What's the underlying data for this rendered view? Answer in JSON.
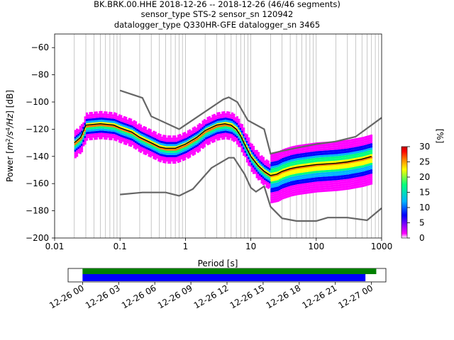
{
  "chart_data": [
    {
      "type": "heatmap",
      "title_lines": [
        "BK.BRK.00.HHE   2018-12-26 -- 2018-12-26  (46/46 segments)",
        "sensor_type STS-2 sensor_sn 120942",
        "datalogger_type Q330HR-GFE datalogger_sn 3465"
      ],
      "xlabel": "Period [s]",
      "ylabel_parts": [
        "Power [",
        "m",
        "2",
        "/",
        "s",
        "4",
        "/Hz",
        "] [dB]"
      ],
      "xscale": "log",
      "xlim": [
        0.01,
        1000
      ],
      "ylim": [
        -200,
        -50
      ],
      "xticks": [
        {
          "v": 0.01,
          "label": "0.01"
        },
        {
          "v": 0.1,
          "label": "0.1"
        },
        {
          "v": 1,
          "label": "1"
        },
        {
          "v": 10,
          "label": "10"
        },
        {
          "v": 100,
          "label": "100"
        },
        {
          "v": 1000,
          "label": "1000"
        }
      ],
      "yticks": [
        {
          "v": -60,
          "label": "−60"
        },
        {
          "v": -80,
          "label": "−80"
        },
        {
          "v": -100,
          "label": "−100"
        },
        {
          "v": -120,
          "label": "−120"
        },
        {
          "v": -140,
          "label": "−140"
        },
        {
          "v": -160,
          "label": "−160"
        },
        {
          "v": -180,
          "label": "−180"
        },
        {
          "v": -200,
          "label": "−200"
        }
      ],
      "grid": "vertical at log minor decades",
      "colorbar": {
        "label": "[%]",
        "range": [
          0,
          30
        ],
        "ticks": [
          {
            "v": 0,
            "label": "0"
          },
          {
            "v": 5,
            "label": "5"
          },
          {
            "v": 10,
            "label": "10"
          },
          {
            "v": 15,
            "label": "15"
          },
          {
            "v": 20,
            "label": "20"
          },
          {
            "v": 25,
            "label": "25"
          },
          {
            "v": 30,
            "label": "30"
          }
        ],
        "colors": [
          "#ffffff",
          "#ff00ff",
          "#0000ff",
          "#00b4ff",
          "#00ff80",
          "#ffff00",
          "#ff8000",
          "#ff0000",
          "#c00000"
        ]
      },
      "series": [
        {
          "x": [
            0.1,
            0.22,
            0.3,
            0.8,
            3.8,
            4.6,
            6.2,
            9.0,
            16,
            20,
            30,
            60,
            100,
            200,
            400,
            1000
          ],
          "values": [
            -91.5,
            -97,
            -110.5,
            -120,
            -98,
            -96.5,
            -100,
            -113.5,
            -120,
            -138,
            -136,
            -133,
            -131,
            -129,
            -125.5,
            -111.5
          ]
        },
        {
          "x": [
            0.1,
            0.22,
            0.5,
            0.8,
            1.3,
            2.5,
            4.6,
            5.5,
            8.0,
            10,
            12,
            16,
            20,
            30,
            50,
            100,
            150,
            300,
            600,
            1000
          ],
          "values": [
            -168,
            -166.5,
            -166.5,
            -169,
            -164,
            -148.5,
            -141,
            -141,
            -153,
            -163,
            -166,
            -162,
            -177,
            -185.5,
            -187.5,
            -187.5,
            -185,
            -185,
            -187,
            -178
          ]
        },
        {
          "x": [
            0.02,
            0.025,
            0.03,
            0.05,
            0.08,
            0.1,
            0.15,
            0.2,
            0.3,
            0.4,
            0.5,
            0.7,
            1.0,
            1.5,
            2.0,
            3.0,
            4.0,
            5.0,
            6.0,
            7.0,
            8.0,
            10,
            13,
            16,
            20,
            25,
            30,
            40,
            50,
            70,
            100,
            200,
            300,
            500,
            700
          ],
          "values": [
            -130,
            -126,
            -117,
            -116,
            -117,
            -119,
            -122,
            -126,
            -130,
            -133,
            -134,
            -134,
            -131,
            -126,
            -121,
            -117,
            -116,
            -117,
            -120,
            -125,
            -131,
            -140,
            -147,
            -151,
            -154,
            -153,
            -151,
            -149,
            -148,
            -147,
            -146,
            -145,
            -144,
            -142,
            -140
          ]
        }
      ],
      "heat_band_db": 14
    },
    {
      "type": "timeline",
      "xticks": [
        {
          "v": 0,
          "label": "12-26 00"
        },
        {
          "v": 3,
          "label": "12-26 03"
        },
        {
          "v": 6,
          "label": "12-26 06"
        },
        {
          "v": 9,
          "label": "12-26 09"
        },
        {
          "v": 12,
          "label": "12-26 12"
        },
        {
          "v": 15,
          "label": "12-26 15"
        },
        {
          "v": 18,
          "label": "12-26 18"
        },
        {
          "v": 21,
          "label": "12-26 21"
        },
        {
          "v": 24,
          "label": "12-27 00"
        }
      ],
      "xlim_hours": [
        -1.2,
        25.2
      ],
      "bars": [
        {
          "start": 0,
          "end": 24.4,
          "color": "#008000"
        },
        {
          "start": 0,
          "end": 23.5,
          "color": "#0000ff"
        }
      ]
    }
  ]
}
